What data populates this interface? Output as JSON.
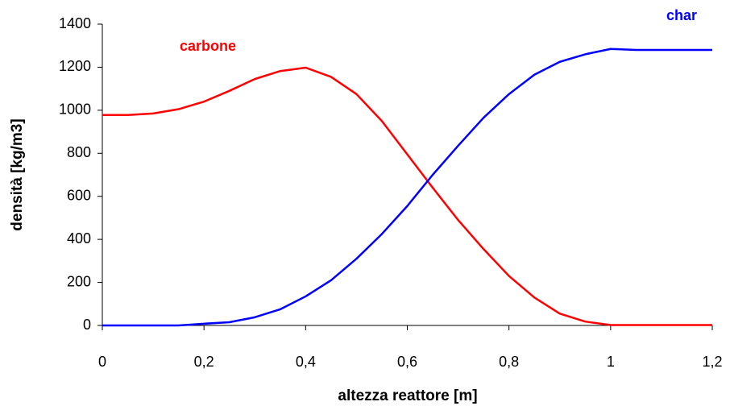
{
  "chart_data": {
    "type": "line",
    "x_label": "altezza reattore [m]",
    "y_label": "densità [kg/m3]",
    "x": [
      0,
      0.05,
      0.1,
      0.15,
      0.2,
      0.25,
      0.3,
      0.35,
      0.4,
      0.45,
      0.5,
      0.55,
      0.6,
      0.65,
      0.7,
      0.75,
      0.8,
      0.85,
      0.9,
      0.95,
      1.0,
      1.05,
      1.1,
      1.15,
      1.2
    ],
    "series": [
      {
        "name": "carbone",
        "color": "#ff0000",
        "values": [
          978,
          978,
          985,
          1005,
          1040,
          1090,
          1145,
          1182,
          1198,
          1155,
          1075,
          950,
          795,
          640,
          490,
          355,
          230,
          130,
          55,
          18,
          2,
          2,
          2,
          2,
          2
        ]
      },
      {
        "name": "char",
        "color": "#0000ff",
        "values": [
          0,
          0,
          0,
          0,
          8,
          15,
          38,
          75,
          135,
          210,
          310,
          425,
          555,
          700,
          835,
          965,
          1075,
          1165,
          1225,
          1260,
          1285,
          1280,
          1280,
          1280,
          1280
        ]
      }
    ],
    "xlim": [
      0,
      1.2
    ],
    "xticks": [
      0,
      {
        "value": 0.2,
        "label": "0,2"
      },
      {
        "value": 0.4,
        "label": "0,4"
      },
      {
        "value": 0.6,
        "label": "0,6"
      },
      {
        "value": 0.8,
        "label": "0,8"
      },
      1,
      {
        "value": 1.2,
        "label": "1,2"
      }
    ],
    "ylim": [
      0,
      1400
    ],
    "yticks": [
      0,
      200,
      400,
      600,
      800,
      1000,
      1200,
      1400
    ],
    "grid": false
  }
}
